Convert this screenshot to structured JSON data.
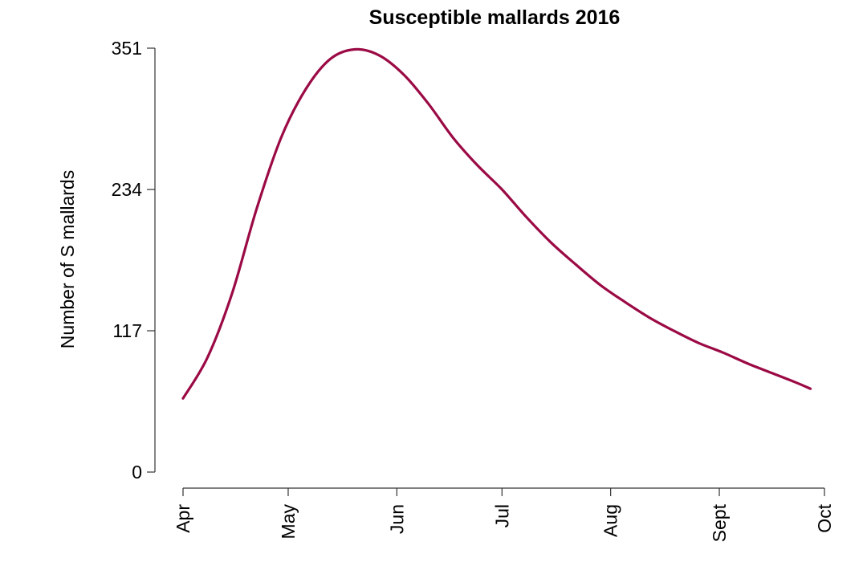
{
  "chart_data": {
    "type": "line",
    "title": "Susceptible mallards 2016",
    "xlabel": "",
    "ylabel": "Number of S mallards",
    "x_tick_labels": [
      "Apr",
      "May",
      "Jun",
      "Jul",
      "Aug",
      "Sept",
      "Oct"
    ],
    "x_tick_dates": [
      "2016-04-01",
      "2016-05-01",
      "2016-06-01",
      "2016-07-01",
      "2016-08-01",
      "2016-09-01",
      "2016-10-01"
    ],
    "y_tick_labels": [
      "0",
      "117",
      "234",
      "351"
    ],
    "y_ticks": [
      0,
      117,
      234,
      351
    ],
    "ylim": [
      0,
      351
    ],
    "xlim": [
      "2016-04-01",
      "2016-10-01"
    ],
    "grid": false,
    "series": [
      {
        "color": "#9b0a45",
        "x": [
          "2016-04-01",
          "2016-04-08",
          "2016-04-15",
          "2016-04-22",
          "2016-04-29",
          "2016-05-06",
          "2016-05-13",
          "2016-05-20",
          "2016-05-27",
          "2016-06-03",
          "2016-06-10",
          "2016-06-17",
          "2016-06-24",
          "2016-07-01",
          "2016-07-08",
          "2016-07-15",
          "2016-07-22",
          "2016-07-29",
          "2016-08-05",
          "2016-08-12",
          "2016-08-19",
          "2016-08-26",
          "2016-09-02",
          "2016-09-09",
          "2016-09-16",
          "2016-09-23",
          "2016-09-27"
        ],
        "y": [
          61,
          95,
          148,
          218,
          277,
          317,
          342,
          350,
          345,
          329,
          305,
          277,
          254,
          234,
          211,
          190,
          172,
          155,
          141,
          128,
          117,
          107,
          99,
          90,
          82,
          74,
          69
        ]
      }
    ]
  }
}
